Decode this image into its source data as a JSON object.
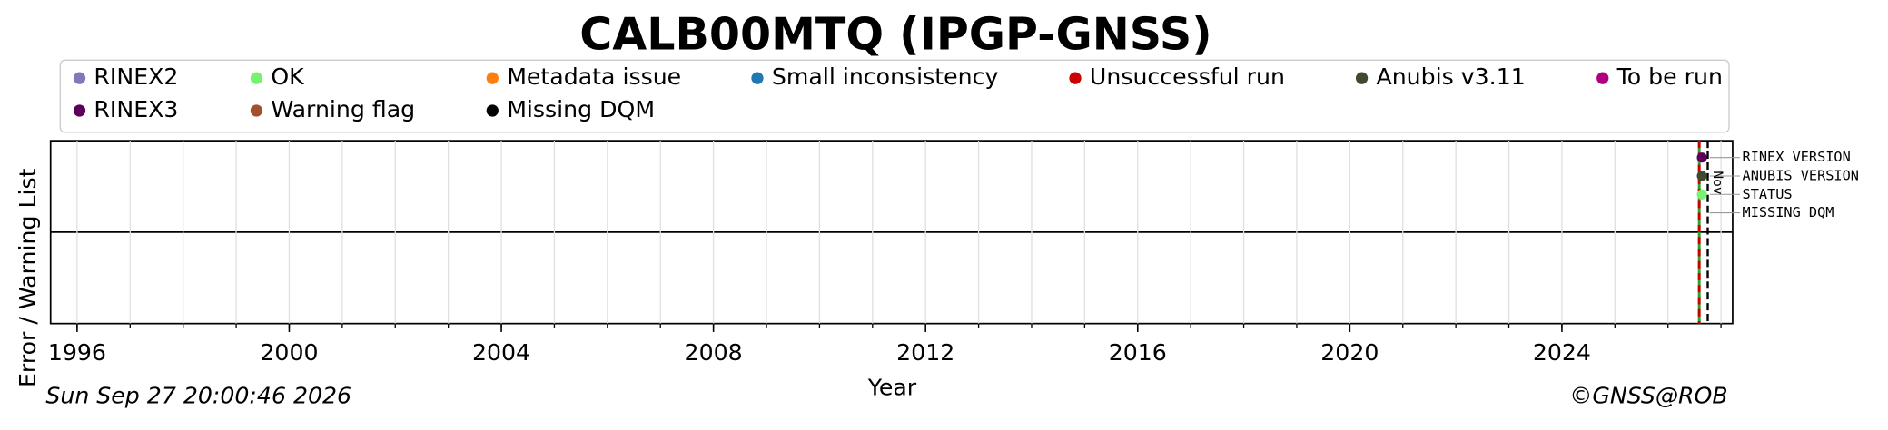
{
  "chart_data": {
    "type": "timeline",
    "title": "CALB00MTQ (IPGP-GNSS)",
    "legend": [
      {
        "name": "RINEX2",
        "color": "#8078b8"
      },
      {
        "name": "OK",
        "color": "#78f070"
      },
      {
        "name": "Metadata issue",
        "color": "#ff7f0e"
      },
      {
        "name": "Small inconsistency",
        "color": "#1f77b4"
      },
      {
        "name": "Unsuccessful run",
        "color": "#cc0000"
      },
      {
        "name": "Anubis v3.11",
        "color": "#404a30"
      },
      {
        "name": "To be run",
        "color": "#b0007f"
      },
      {
        "name": "RINEX3",
        "color": "#5c005c"
      },
      {
        "name": "Warning flag",
        "color": "#a0522d"
      },
      {
        "name": "Missing DQM",
        "color": "#000000"
      }
    ],
    "xlabel": "Year",
    "ylabel": "Error / Warning List",
    "xlim": [
      1995.5,
      2027.22
    ],
    "xticks": [
      1996,
      2000,
      2004,
      2008,
      2012,
      2016,
      2020,
      2024
    ],
    "minor_xticks": [
      1996,
      1997,
      1998,
      1999,
      2000,
      2001,
      2002,
      2003,
      2004,
      2005,
      2006,
      2007,
      2008,
      2009,
      2010,
      2011,
      2012,
      2013,
      2014,
      2015,
      2016,
      2017,
      2018,
      2019,
      2020,
      2021,
      2022,
      2023,
      2024,
      2025,
      2026,
      2027
    ],
    "grid": true,
    "rows": [
      "RINEX VERSION",
      "ANUBIS VERSION",
      "STATUS",
      "MISSING DQM"
    ],
    "points": [
      {
        "row": "RINEX VERSION",
        "x": 2026.64,
        "color": "#5c005c"
      },
      {
        "row": "ANUBIS VERSION",
        "x": 2026.64,
        "color": "#404a30"
      },
      {
        "row": "STATUS",
        "x": 2026.64,
        "color": "#78f070"
      }
    ],
    "vlines": [
      {
        "x": 2026.59,
        "color": "#cc0000",
        "color2": "#2ca02c",
        "dashed": true
      },
      {
        "x": 2026.75,
        "color": "#000000",
        "dashed": true,
        "label": "Nov"
      }
    ],
    "date": "Sun Sep 27 20:00:46 2026",
    "copyright": "©GNSS@ROB"
  }
}
